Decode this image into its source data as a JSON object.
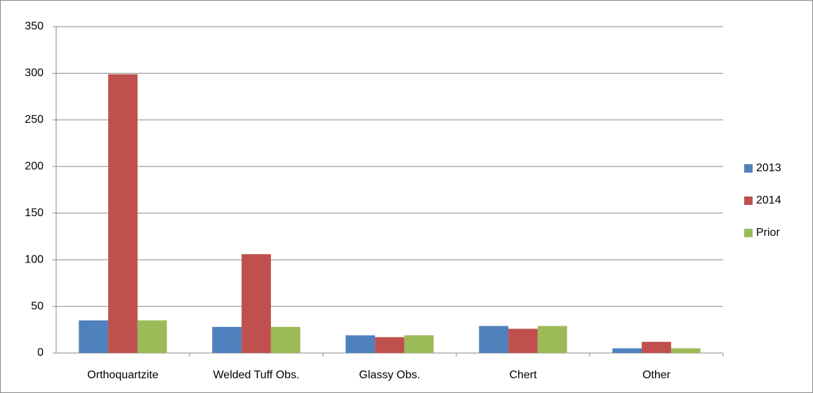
{
  "chart_data": {
    "type": "bar",
    "categories": [
      "Orthoquartzite",
      "Welded Tuff Obs.",
      "Glassy Obs.",
      "Chert",
      "Other"
    ],
    "series": [
      {
        "name": "2013",
        "color": "#4f81bd",
        "values": [
          35,
          28,
          19,
          29,
          5
        ]
      },
      {
        "name": "2014",
        "color": "#c0504d",
        "values": [
          299,
          106,
          17,
          26,
          12
        ]
      },
      {
        "name": "Prior",
        "color": "#9bbb59",
        "values": [
          35,
          28,
          19,
          29,
          5
        ]
      }
    ],
    "ylim": [
      0,
      350
    ],
    "yticks": [
      0,
      50,
      100,
      150,
      200,
      250,
      300,
      350
    ],
    "grid": true,
    "legend": "right"
  }
}
